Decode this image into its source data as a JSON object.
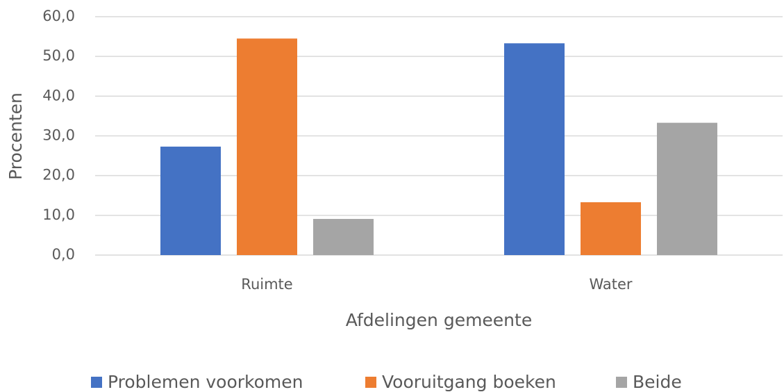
{
  "chart_data": {
    "type": "bar",
    "x_label": "Afdelingen gemeente",
    "y_label": "Procenten",
    "categories": [
      "Ruimte",
      "Water"
    ],
    "series": [
      {
        "name": "Problemen voorkomen",
        "color": "#4472c4",
        "values": [
          27.3,
          53.3
        ]
      },
      {
        "name": "Vooruitgang boeken",
        "color": "#ed7d31",
        "values": [
          54.5,
          13.3
        ]
      },
      {
        "name": "Beide",
        "color": "#a5a5a5",
        "values": [
          9.1,
          33.3
        ]
      }
    ],
    "ylim": [
      0,
      60
    ],
    "yticks": [
      {
        "value": 0,
        "label": "0,0"
      },
      {
        "value": 10,
        "label": "10,0"
      },
      {
        "value": 20,
        "label": "20,0"
      },
      {
        "value": 30,
        "label": "30,0"
      },
      {
        "value": 40,
        "label": "40,0"
      },
      {
        "value": 50,
        "label": "50,0"
      },
      {
        "value": 60,
        "label": "60,0"
      }
    ],
    "grid": true,
    "legend": "bottom"
  }
}
